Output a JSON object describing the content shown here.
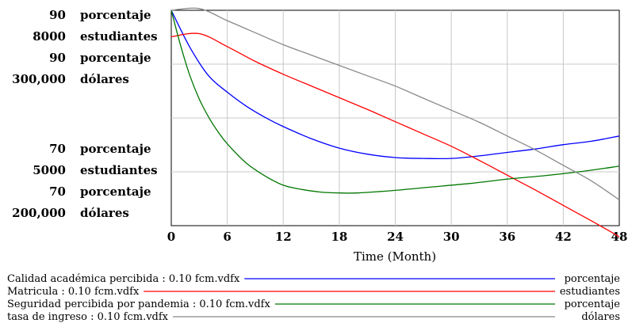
{
  "chart_data": {
    "type": "line",
    "xlabel": "Time (Month)",
    "xlim": [
      0,
      48
    ],
    "x_ticks": [
      "0",
      "6",
      "12",
      "18",
      "24",
      "30",
      "36",
      "42",
      "48"
    ],
    "grid": true,
    "legend_placement": "bottom",
    "y_axes": [
      {
        "series": "Calidad académica percibida",
        "unit": "porcentaje",
        "ylim": [
          65,
          90
        ],
        "top_label": "90",
        "mid_label": "70"
      },
      {
        "series": "Matricula",
        "unit": "estudiantes",
        "ylim": [
          4500,
          8000
        ],
        "top_label": "8000",
        "mid_label": "5000"
      },
      {
        "series": "Seguridad percibida por pandemia",
        "unit": "porcentaje",
        "ylim": [
          65,
          90
        ],
        "top_label": "90",
        "mid_label": "70"
      },
      {
        "series": "tasa de ingreso",
        "unit": "dólares",
        "ylim": [
          175000,
          300000
        ],
        "top_label": "300,000",
        "mid_label": "200,000"
      }
    ],
    "series": [
      {
        "name": "Calidad académica percibida",
        "legend_label": "Calidad académica percibida : 0.10 fcm.vdfx",
        "unit": "porcentaje",
        "color": "#0000ff",
        "x": [
          0,
          2,
          4,
          6,
          8,
          10,
          12,
          15,
          18,
          21,
          24,
          27,
          30,
          33,
          36,
          39,
          42,
          45,
          48
        ],
        "y": [
          90,
          85.7,
          82.4,
          80.5,
          78.9,
          77.6,
          76.5,
          75.1,
          74.0,
          73.3,
          72.9,
          72.8,
          72.8,
          73.1,
          73.5,
          73.9,
          74.4,
          74.8,
          75.4
        ]
      },
      {
        "name": "Matricula",
        "legend_label": "Matricula : 0.10 fcm.vdfx",
        "unit": "estudiantes",
        "color": "#ff0000",
        "x": [
          0,
          3,
          6,
          9,
          12,
          15,
          18,
          21,
          24,
          27,
          30,
          33,
          36,
          39,
          42,
          45,
          48
        ],
        "y": [
          7570,
          7620,
          7410,
          7170,
          6960,
          6770,
          6580,
          6390,
          6190,
          5990,
          5790,
          5560,
          5320,
          5080,
          4830,
          4580,
          4320
        ]
      },
      {
        "name": "Seguridad percibida por pandemia",
        "legend_label": "Seguridad percibida por pandemia : 0.10 fcm.vdfx",
        "unit": "porcentaje",
        "color": "#007700",
        "x": [
          0,
          1,
          2,
          3,
          4,
          5,
          6,
          8,
          10,
          12,
          14,
          16,
          18,
          20,
          24,
          28,
          32,
          36,
          40,
          44,
          48
        ],
        "y": [
          90,
          85.9,
          82.4,
          79.7,
          77.6,
          75.9,
          74.5,
          72.3,
          70.8,
          69.7,
          69.2,
          68.9,
          68.8,
          68.8,
          69.1,
          69.5,
          69.9,
          70.4,
          70.8,
          71.3,
          71.9
        ]
      },
      {
        "name": "tasa de ingreso",
        "legend_label": "tasa de ingreso : 0.10 fcm.vdfx",
        "unit": "dólares",
        "color": "#888888",
        "x": [
          0,
          3,
          6,
          9,
          12,
          15,
          18,
          21,
          24,
          27,
          30,
          33,
          36,
          39,
          42,
          45,
          48
        ],
        "y": [
          300000,
          301000,
          294000,
          287000,
          280000,
          274000,
          268000,
          262000,
          256000,
          249000,
          242000,
          235000,
          227000,
          219000,
          210000,
          201000,
          190000
        ]
      }
    ]
  }
}
